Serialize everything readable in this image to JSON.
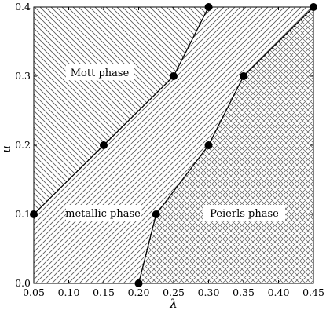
{
  "chart_data": {
    "type": "scatter",
    "title": "",
    "xlabel": "λ",
    "ylabel": "u",
    "xlim": [
      0.05,
      0.45
    ],
    "ylim": [
      0.0,
      0.4
    ],
    "xticks": [
      "0.05",
      "0.10",
      "0.15",
      "0.20",
      "0.25",
      "0.30",
      "0.35",
      "0.40",
      "0.45"
    ],
    "yticks": [
      "0.0",
      "0.1",
      "0.2",
      "0.3",
      "0.4"
    ],
    "grid": false,
    "series": [
      {
        "boundary": "mott-metal",
        "points": [
          {
            "x": 0.05,
            "y": 0.1
          },
          {
            "x": 0.15,
            "y": 0.2
          },
          {
            "x": 0.25,
            "y": 0.3
          },
          {
            "x": 0.3,
            "y": 0.4
          }
        ]
      },
      {
        "boundary": "metal-peierls",
        "points": [
          {
            "x": 0.2,
            "y": 0.0
          },
          {
            "x": 0.225,
            "y": 0.1
          },
          {
            "x": 0.3,
            "y": 0.2
          },
          {
            "x": 0.35,
            "y": 0.3
          },
          {
            "x": 0.45,
            "y": 0.4
          }
        ]
      }
    ],
    "regions": [
      {
        "label": "Mott phase",
        "hatch": "diagonal-backslash"
      },
      {
        "label": "metallic phase",
        "hatch": "diagonal-slash"
      },
      {
        "label": "Peierls phase",
        "hatch": "crosshatch"
      }
    ],
    "colors": {
      "line": "#000000",
      "hatch": "#555555",
      "background": "#ffffff",
      "label_bg": "#ffffff"
    }
  }
}
